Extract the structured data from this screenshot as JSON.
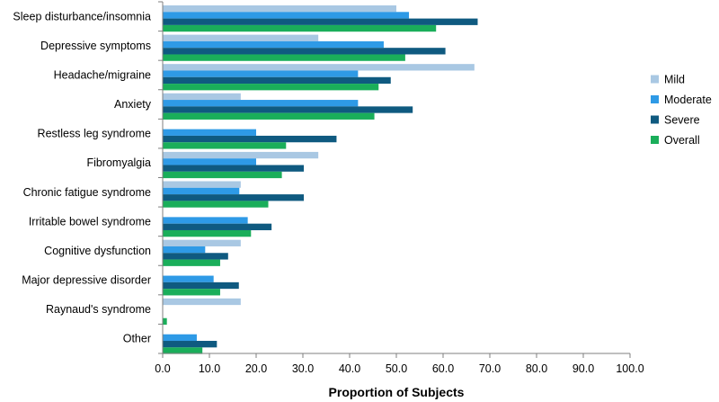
{
  "chart_data": {
    "type": "bar",
    "orientation": "horizontal",
    "title": "",
    "xlabel": "Proportion of Subjects",
    "ylabel": "",
    "xlim": [
      0,
      100
    ],
    "x_ticks": [
      "0.0",
      "10.0",
      "20.0",
      "30.0",
      "40.0",
      "50.0",
      "60.0",
      "70.0",
      "80.0",
      "90.0",
      "100.0"
    ],
    "grid": false,
    "legend_position": "right",
    "categories": [
      "Sleep disturbance/insomnia",
      "Depressive symptoms",
      "Headache/migraine",
      "Anxiety",
      "Restless leg syndrome",
      "Fibromyalgia",
      "Chronic fatigue syndrome",
      "Irritable bowel syndrome",
      "Cognitive dysfunction",
      "Major depressive disorder",
      "Raynaud's syndrome",
      "Other"
    ],
    "series": [
      {
        "name": "Mild",
        "color": "#a9c8e3",
        "values": [
          50.0,
          33.3,
          66.7,
          16.7,
          0,
          33.3,
          16.7,
          0,
          16.7,
          0,
          16.7,
          0
        ]
      },
      {
        "name": "Moderate",
        "color": "#2e9ae6",
        "values": [
          52.7,
          47.3,
          41.8,
          41.8,
          20.0,
          20.0,
          16.4,
          18.2,
          9.1,
          10.9,
          0,
          7.3
        ]
      },
      {
        "name": "Severe",
        "color": "#0f5a80",
        "values": [
          67.4,
          60.5,
          48.8,
          53.5,
          37.2,
          30.2,
          30.2,
          23.3,
          14.0,
          16.3,
          0,
          11.6
        ]
      },
      {
        "name": "Overall",
        "color": "#1aae5a",
        "values": [
          58.5,
          51.9,
          46.2,
          45.3,
          26.4,
          25.5,
          22.6,
          18.9,
          12.3,
          12.3,
          0.9,
          8.5
        ]
      }
    ]
  }
}
